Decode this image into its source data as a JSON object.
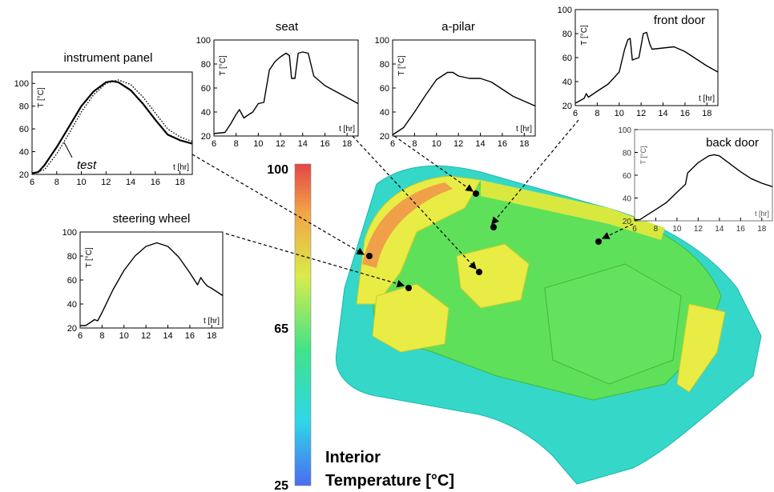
{
  "colors": {
    "colorbar_stops": [
      "#4a6cf0",
      "#2fd7e8",
      "#3fe38a",
      "#d8ec4a",
      "#f2a447",
      "#e44545"
    ],
    "car_body": "#35d7c8",
    "car_interior": "#5fe05a",
    "car_warm": "#e8ec45",
    "car_hot": "#f0a048"
  },
  "colorbar": {
    "max_label": "100",
    "mid_label": "65",
    "min_label": "25",
    "title_line1": "Interior",
    "title_line2": "Temperature [°C]"
  },
  "chart_data": [
    {
      "type": "line",
      "title": "instrument panel",
      "xlabel": "t [hr]",
      "ylabel": "T [°C]",
      "xlim": [
        6,
        19
      ],
      "ylim": [
        20,
        110
      ],
      "xticks": [
        6,
        8,
        10,
        12,
        14,
        16,
        18
      ],
      "yticks": [
        20,
        40,
        60,
        80,
        100
      ],
      "annotation": "test",
      "series": [
        {
          "name": "",
          "style": "solid",
          "x": [
            6,
            6.5,
            7,
            8,
            9,
            10,
            11,
            12,
            12.5,
            13,
            14,
            15,
            16,
            17,
            18,
            19
          ],
          "y": [
            21,
            22,
            28,
            44,
            62,
            80,
            93,
            101,
            102,
            101,
            94,
            82,
            68,
            55,
            50,
            47
          ]
        },
        {
          "name": "test",
          "style": "dotted",
          "x": [
            6,
            7,
            8,
            9,
            10,
            11,
            12,
            13,
            14,
            15,
            16,
            17,
            18,
            19
          ],
          "y": [
            21,
            24,
            38,
            56,
            75,
            90,
            100,
            103,
            99,
            88,
            74,
            60,
            53,
            49
          ]
        }
      ]
    },
    {
      "type": "line",
      "title": "seat",
      "xlabel": "t [hr]",
      "ylabel": "T [°C]",
      "xlim": [
        6,
        19
      ],
      "ylim": [
        20,
        100
      ],
      "xticks": [
        6,
        8,
        10,
        12,
        14,
        16,
        18
      ],
      "yticks": [
        20,
        40,
        60,
        80,
        100
      ],
      "series": [
        {
          "name": "",
          "style": "solid",
          "x": [
            6,
            7,
            7.5,
            8,
            8.3,
            8.7,
            9,
            9.5,
            10,
            10.5,
            11,
            11.5,
            12,
            12.5,
            12.8,
            13,
            13.3,
            13.6,
            14,
            14.5,
            15,
            16,
            17,
            18,
            19
          ],
          "y": [
            22,
            23,
            30,
            38,
            42,
            35,
            37,
            40,
            47,
            48,
            75,
            82,
            86,
            89,
            87,
            68,
            68,
            89,
            90,
            89,
            70,
            62,
            57,
            52,
            47
          ]
        }
      ]
    },
    {
      "type": "line",
      "title": "a-pilar",
      "xlabel": "t [hr]",
      "ylabel": "T [°C]",
      "xlim": [
        6,
        19
      ],
      "ylim": [
        20,
        100
      ],
      "xticks": [
        6,
        8,
        10,
        12,
        14,
        16,
        18
      ],
      "yticks": [
        20,
        40,
        60,
        80,
        100
      ],
      "series": [
        {
          "name": "",
          "style": "solid",
          "x": [
            6,
            7,
            8,
            9,
            10,
            11,
            11.5,
            12,
            13,
            14,
            15,
            16,
            17,
            18,
            19
          ],
          "y": [
            21,
            27,
            40,
            54,
            67,
            73,
            73,
            70,
            68,
            68,
            65,
            59,
            53,
            49,
            45
          ]
        }
      ]
    },
    {
      "type": "line",
      "title": "front door",
      "xlabel": "t [hr]",
      "ylabel": "T [°C]",
      "xlim": [
        6,
        19
      ],
      "ylim": [
        20,
        100
      ],
      "xticks": [
        6,
        8,
        10,
        12,
        14,
        16,
        18
      ],
      "yticks": [
        20,
        40,
        60,
        80,
        100
      ],
      "series": [
        {
          "name": "",
          "style": "solid",
          "x": [
            6,
            6.8,
            7,
            7.2,
            8,
            9,
            10,
            10.5,
            10.8,
            11,
            11.2,
            11.8,
            12.2,
            12.5,
            12.8,
            13,
            14,
            15,
            16,
            17,
            18,
            19
          ],
          "y": [
            22,
            26,
            30,
            27,
            32,
            38,
            48,
            67,
            75,
            76,
            58,
            60,
            80,
            81,
            71,
            67,
            68,
            69,
            65,
            59,
            53,
            48
          ]
        }
      ]
    },
    {
      "type": "line",
      "title": "back door",
      "xlabel": "t [hr]",
      "ylabel": "T [°C]",
      "xlim": [
        6,
        19
      ],
      "ylim": [
        20,
        100
      ],
      "xticks": [
        6,
        8,
        10,
        12,
        14,
        16,
        18
      ],
      "yticks": [
        20,
        40,
        60,
        80,
        100
      ],
      "series": [
        {
          "name": "",
          "style": "solid",
          "x": [
            6,
            6.5,
            7,
            8,
            9,
            10,
            10.8,
            11,
            12,
            13,
            13.5,
            14,
            15,
            16,
            17,
            18,
            19
          ],
          "y": [
            21,
            21,
            24,
            30,
            36,
            45,
            52,
            62,
            71,
            77,
            78,
            77,
            70,
            63,
            57,
            53,
            50
          ]
        }
      ]
    },
    {
      "type": "line",
      "title": "steering wheel",
      "xlabel": "t [hr]",
      "ylabel": "T [°C]",
      "xlim": [
        6,
        19
      ],
      "ylim": [
        20,
        100
      ],
      "xticks": [
        6,
        8,
        10,
        12,
        14,
        16,
        18
      ],
      "yticks": [
        20,
        40,
        60,
        80,
        100
      ],
      "series": [
        {
          "name": "",
          "style": "solid",
          "x": [
            6,
            6.5,
            7,
            7.3,
            7.6,
            8,
            9,
            10,
            11,
            12,
            13,
            14,
            15,
            16,
            16.7,
            17,
            17.3,
            17.6,
            18,
            19
          ],
          "y": [
            22,
            22,
            25,
            27,
            26,
            33,
            52,
            68,
            80,
            88,
            91,
            88,
            79,
            66,
            56,
            62,
            58,
            55,
            53,
            47
          ]
        }
      ]
    }
  ]
}
